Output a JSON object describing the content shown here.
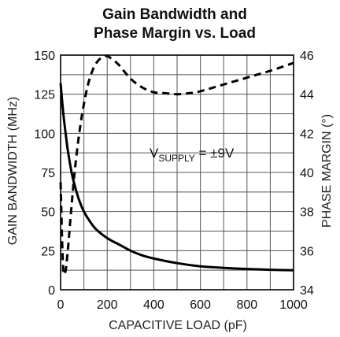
{
  "chart_data": {
    "type": "line",
    "title_line1": "Gain Bandwidth and",
    "title_line2": "Phase Margin vs. Load",
    "xlabel": "CAPACITIVE LOAD (pF)",
    "ylabel_left": "GAIN BANDWIDTH (MHz)",
    "ylabel_right": "PHASE MARGIN (°)",
    "xlim": [
      0,
      1000
    ],
    "ylim_left": [
      0,
      150
    ],
    "ylim_right": [
      34,
      46
    ],
    "x_ticks": [
      "0",
      "200",
      "400",
      "600",
      "800",
      "1000"
    ],
    "y_ticks_left": [
      "0",
      "25",
      "50",
      "75",
      "100",
      "125",
      "150"
    ],
    "y_ticks_right": [
      "34",
      "36",
      "38",
      "40",
      "42",
      "44",
      "46"
    ],
    "grid": true,
    "annotation": {
      "prefix": "V",
      "subscript": "SUPPLY",
      "suffix": " = ±9V"
    },
    "series": [
      {
        "axis": "left",
        "style": "solid",
        "x": [
          0,
          10,
          20,
          30,
          40,
          50,
          60,
          80,
          100,
          120,
          150,
          200,
          250,
          300,
          350,
          400,
          500,
          600,
          700,
          800,
          900,
          1000
        ],
        "y": [
          132,
          115,
          102,
          90,
          81,
          73,
          67,
          57,
          50,
          45,
          39,
          33,
          29,
          25,
          22,
          20,
          17,
          15,
          14,
          13.3,
          12.8,
          12.5
        ]
      },
      {
        "axis": "right",
        "style": "dashed",
        "x": [
          0,
          10,
          20,
          30,
          40,
          50,
          60,
          80,
          100,
          120,
          140,
          160,
          180,
          200,
          220,
          250,
          300,
          350,
          400,
          450,
          500,
          550,
          600,
          700,
          800,
          900,
          1000
        ],
        "y": [
          39.5,
          35.3,
          34.9,
          35.9,
          37.3,
          38.7,
          40.0,
          42.0,
          43.5,
          44.6,
          45.3,
          45.7,
          45.9,
          45.95,
          45.8,
          45.5,
          44.8,
          44.35,
          44.1,
          44.05,
          44.0,
          44.05,
          44.15,
          44.5,
          44.85,
          45.2,
          45.6
        ]
      }
    ]
  }
}
